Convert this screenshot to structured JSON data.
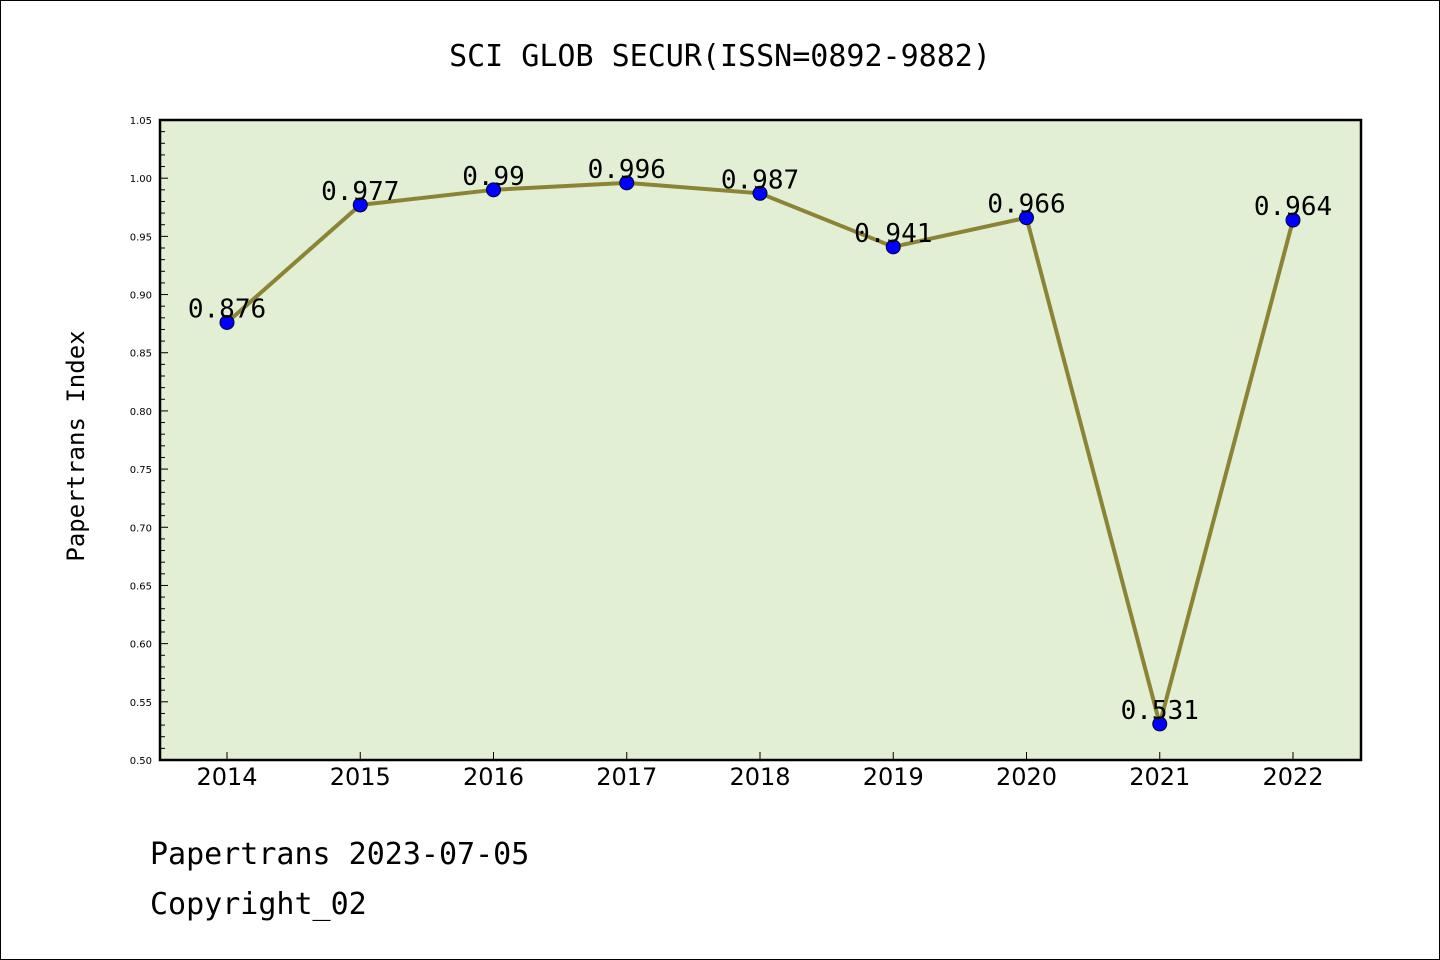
{
  "chart_data": {
    "type": "line",
    "title": "SCI GLOB SECUR(ISSN=0892-9882)",
    "ylabel": "Papertrans Index",
    "xlabel": "",
    "categories": [
      "2014",
      "2015",
      "2016",
      "2017",
      "2018",
      "2019",
      "2020",
      "2021",
      "2022"
    ],
    "series": [
      {
        "values": [
          0.876,
          0.977,
          0.99,
          0.996,
          0.987,
          0.941,
          0.966,
          0.531,
          0.964
        ]
      }
    ],
    "data_labels": [
      "0.876",
      "0.977",
      "0.99",
      "0.996",
      "0.987",
      "0.941",
      "0.966",
      "0.531",
      "0.964"
    ],
    "ylim": [
      0.5,
      1.05
    ],
    "yticks": [
      "0.50",
      "0.55",
      "0.60",
      "0.65",
      "0.70",
      "0.75",
      "0.80",
      "0.85",
      "0.90",
      "0.95",
      "1.00",
      "1.05"
    ],
    "grid": false,
    "colors": {
      "plot_bg": "#e2efd5",
      "line": "#8b8434",
      "marker": "#0000ff"
    }
  },
  "footer": {
    "line1": "Papertrans 2023-07-05",
    "line2": "Copyright_02"
  }
}
